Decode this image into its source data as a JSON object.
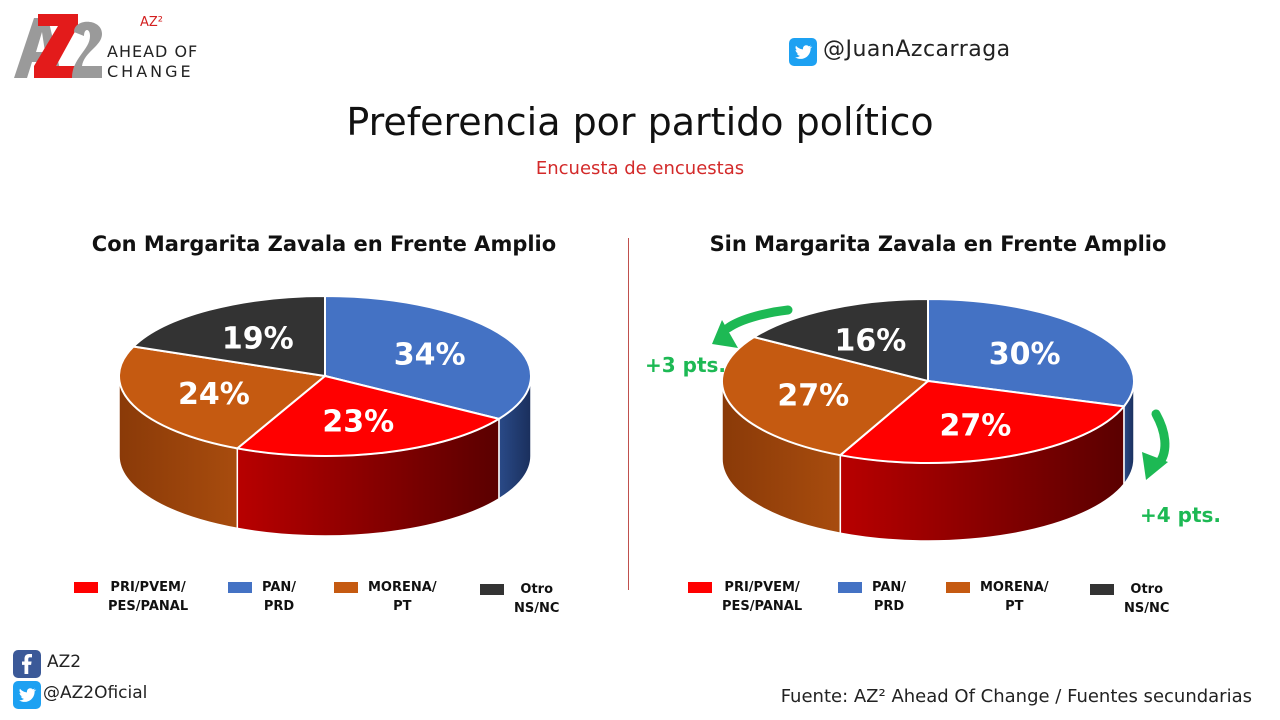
{
  "brand": {
    "sup": "AZ²",
    "line1": "AHEAD OF",
    "line2": "CHANGE"
  },
  "handle_top": "@JuanAzcarraga",
  "title": "Preferencia por partido político",
  "subtitle": "Encuesta de encuestas",
  "social": {
    "facebook": "AZ2",
    "twitter": "@AZ2Oficial"
  },
  "source": "Fuente: AZ² Ahead Of Change / Fuentes secundarias",
  "annotations": {
    "left_change": "+3 pts.",
    "right_change": "+4 pts."
  },
  "legend": [
    {
      "label": "PRI/PVEM/\nPES/PANAL",
      "color": "#ff0000"
    },
    {
      "label": "PAN/\nPRD",
      "color": "#4472c4"
    },
    {
      "label": "MORENA/\nPT",
      "color": "#c55a11"
    },
    {
      "label": "Otro\nNS/NC",
      "color": "#333333"
    }
  ],
  "chart_data": [
    {
      "type": "pie",
      "title": "Con Margarita Zavala en Frente Amplio",
      "slices": [
        {
          "label": "PAN/PRD",
          "value": 34,
          "text": "34%",
          "color": "#4472c4"
        },
        {
          "label": "PRI/PVEM/PES/PANAL",
          "value": 23,
          "text": "23%",
          "color": "#ff0000"
        },
        {
          "label": "MORENA/PT",
          "value": 24,
          "text": "24%",
          "color": "#c55a11"
        },
        {
          "label": "Otro NS/NC",
          "value": 19,
          "text": "19%",
          "color": "#333333"
        }
      ]
    },
    {
      "type": "pie",
      "title": "Sin Margarita Zavala en Frente Amplio",
      "slices": [
        {
          "label": "PAN/PRD",
          "value": 30,
          "text": "30%",
          "color": "#4472c4"
        },
        {
          "label": "PRI/PVEM/PES/PANAL",
          "value": 27,
          "text": "27%",
          "color": "#ff0000"
        },
        {
          "label": "MORENA/PT",
          "value": 27,
          "text": "27%",
          "color": "#c55a11"
        },
        {
          "label": "Otro NS/NC",
          "value": 16,
          "text": "16%",
          "color": "#333333"
        }
      ]
    }
  ]
}
